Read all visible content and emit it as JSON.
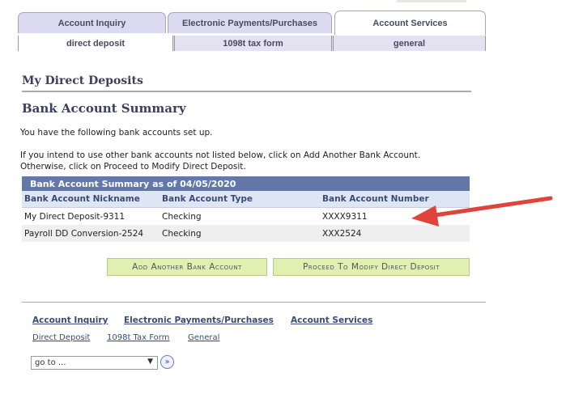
{
  "tabs": [
    {
      "label": "Account Inquiry"
    },
    {
      "label": "Electronic Payments/Purchases"
    },
    {
      "label": "Account Services",
      "active": true
    }
  ],
  "subtabs": [
    {
      "label": "direct deposit",
      "active": true
    },
    {
      "label": "1098t tax form"
    },
    {
      "label": "general"
    }
  ],
  "page_title": "My Direct Deposits",
  "section_title": "Bank Account Summary",
  "intro": "You have the following bank accounts set up.",
  "instructions_1": "If you intend to use other bank accounts not listed below, click on Add Another Bank Account.",
  "instructions_2": "Otherwise, click on Proceed to Modify Direct Deposit.",
  "table": {
    "caption": "Bank Account Summary as of 04/05/2020",
    "columns": [
      "Bank Account Nickname",
      "Bank Account Type",
      "Bank Account Number"
    ],
    "rows": [
      [
        "My Direct Deposit-9311",
        "Checking",
        "XXXX9311"
      ],
      [
        "Payroll DD Conversion-2524",
        "Checking",
        "XXX2524"
      ]
    ]
  },
  "buttons": {
    "add": "Add Another Bank Account",
    "proceed": "Proceed To Modify Direct Deposit"
  },
  "footer": {
    "main_links": [
      "Account Inquiry",
      "Electronic Payments/Purchases",
      "Account Services"
    ],
    "sub_links": [
      "Direct Deposit",
      "1098t Tax Form",
      "General"
    ],
    "goto_value": "go to ...",
    "go_icon": "»"
  },
  "annotation": {
    "arrow_color": "#e0433a"
  }
}
